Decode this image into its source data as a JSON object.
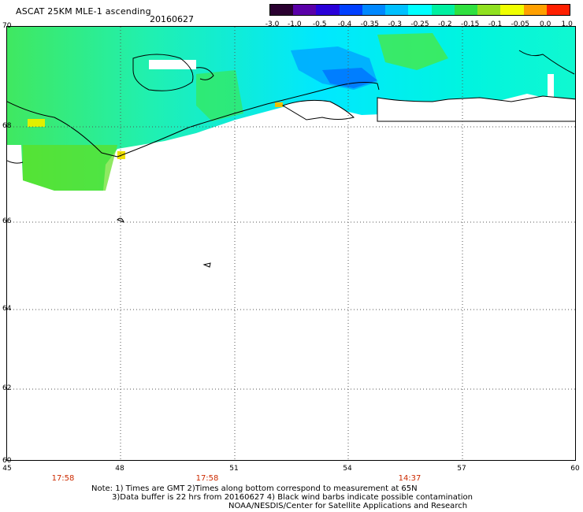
{
  "header": {
    "title": "ASCAT 25KM MLE-1 ascending",
    "date": "20160627"
  },
  "colorbar": {
    "labels": [
      "-3.0",
      "-1.0",
      "-0.5",
      "-0.4",
      "-0.35",
      "-0.3",
      "-0.25",
      "-0.2",
      "-0.15",
      "-0.1",
      "-0.05",
      "0.0",
      "1.0"
    ],
    "colors": [
      "#2a0030",
      "#5a00a8",
      "#2a00d8",
      "#0040ff",
      "#0088ff",
      "#00c0ff",
      "#00ffff",
      "#00f0a0",
      "#30e040",
      "#90e020",
      "#f0ff00",
      "#ffa000",
      "#ff2000"
    ]
  },
  "axes": {
    "lat_labels": [
      "70",
      "68",
      "66",
      "64",
      "62",
      "60"
    ],
    "lon_labels": [
      "45",
      "48",
      "51",
      "54",
      "57",
      "60"
    ],
    "times": [
      "17:58",
      "17:58",
      "14:37"
    ]
  },
  "notes": {
    "line1": "Note: 1) Times are GMT 2)Times along bottom correspond to measurement at 65N",
    "line2": "3)Data buffer is 22 hrs from 20160627 4) Black wind barbs indicate possible contamination",
    "line3": "NOAA/NESDIS/Center for Satellite Applications and Research"
  }
}
